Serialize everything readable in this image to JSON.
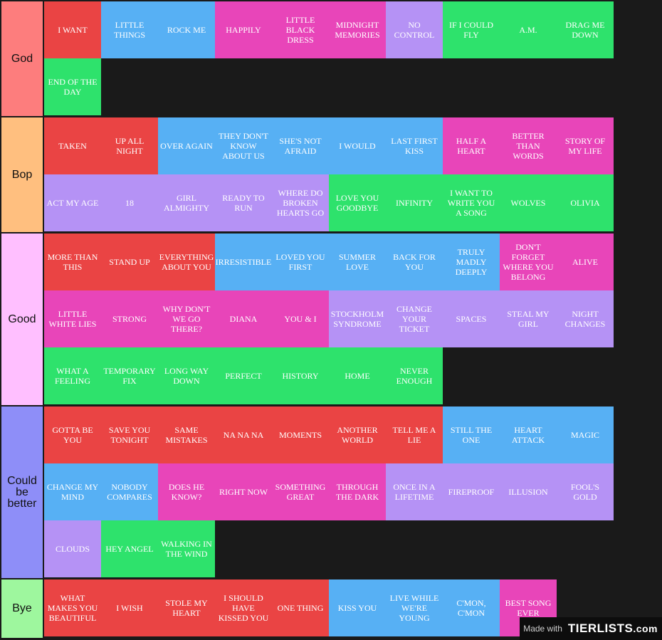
{
  "colors": {
    "red": "#ea4444",
    "blue": "#57b0f4",
    "pink": "#e845b9",
    "purple": "#b592f5",
    "green": "#2ee26c"
  },
  "tiers": [
    {
      "label": "God",
      "label_color": "#fd7d7d",
      "items": [
        {
          "text": "I WANT",
          "color": "red"
        },
        {
          "text": "LITTLE THINGS",
          "color": "blue"
        },
        {
          "text": "ROCK ME",
          "color": "blue"
        },
        {
          "text": "HAPPILY",
          "color": "pink"
        },
        {
          "text": "LITTLE BLACK DRESS",
          "color": "pink"
        },
        {
          "text": "MIDNIGHT MEMORIES",
          "color": "pink"
        },
        {
          "text": "NO CONTROL",
          "color": "purple"
        },
        {
          "text": "IF I COULD FLY",
          "color": "green"
        },
        {
          "text": "A.M.",
          "color": "green"
        },
        {
          "text": "DRAG ME DOWN",
          "color": "green"
        },
        {
          "text": "END OF THE DAY",
          "color": "green"
        }
      ]
    },
    {
      "label": "Bop",
      "label_color": "#ffbf7f",
      "items": [
        {
          "text": "TAKEN",
          "color": "red"
        },
        {
          "text": "UP ALL NIGHT",
          "color": "red"
        },
        {
          "text": "OVER AGAIN",
          "color": "blue"
        },
        {
          "text": "THEY DON'T KNOW ABOUT US",
          "color": "blue"
        },
        {
          "text": "SHE'S NOT AFRAID",
          "color": "blue"
        },
        {
          "text": "I WOULD",
          "color": "blue"
        },
        {
          "text": "LAST FIRST KISS",
          "color": "blue"
        },
        {
          "text": "HALF A HEART",
          "color": "pink"
        },
        {
          "text": "BETTER THAN WORDS",
          "color": "pink"
        },
        {
          "text": "STORY OF MY LIFE",
          "color": "pink"
        },
        {
          "text": "ACT MY AGE",
          "color": "purple"
        },
        {
          "text": "18",
          "color": "purple"
        },
        {
          "text": "GIRL ALMIGHTY",
          "color": "purple"
        },
        {
          "text": "READY TO RUN",
          "color": "purple"
        },
        {
          "text": "WHERE DO BROKEN HEARTS GO",
          "color": "purple"
        },
        {
          "text": "LOVE YOU GOODBYE",
          "color": "green"
        },
        {
          "text": "INFINITY",
          "color": "green"
        },
        {
          "text": "I WANT TO WRITE YOU A SONG",
          "color": "green"
        },
        {
          "text": "WOLVES",
          "color": "green"
        },
        {
          "text": "OLIVIA",
          "color": "green"
        }
      ]
    },
    {
      "label": "Good",
      "label_color": "#ffbfff",
      "items": [
        {
          "text": "MORE THAN THIS",
          "color": "red"
        },
        {
          "text": "STAND UP",
          "color": "red"
        },
        {
          "text": "EVERYTHING ABOUT YOU",
          "color": "red"
        },
        {
          "text": "IRRESISTIBLE",
          "color": "blue"
        },
        {
          "text": "LOVED YOU FIRST",
          "color": "blue"
        },
        {
          "text": "SUMMER LOVE",
          "color": "blue"
        },
        {
          "text": "BACK FOR YOU",
          "color": "blue"
        },
        {
          "text": "TRULY MADLY DEEPLY",
          "color": "blue"
        },
        {
          "text": "DON'T FORGET WHERE YOU BELONG",
          "color": "pink"
        },
        {
          "text": "ALIVE",
          "color": "pink"
        },
        {
          "text": "LITTLE WHITE LIES",
          "color": "pink"
        },
        {
          "text": "STRONG",
          "color": "pink"
        },
        {
          "text": "WHY DON'T WE GO THERE?",
          "color": "pink"
        },
        {
          "text": "DIANA",
          "color": "pink"
        },
        {
          "text": "YOU & I",
          "color": "pink"
        },
        {
          "text": "STOCKHOLM SYNDROME",
          "color": "purple"
        },
        {
          "text": "CHANGE YOUR TICKET",
          "color": "purple"
        },
        {
          "text": "SPACES",
          "color": "purple"
        },
        {
          "text": "STEAL MY GIRL",
          "color": "purple"
        },
        {
          "text": "NIGHT CHANGES",
          "color": "purple"
        },
        {
          "text": "WHAT A FEELING",
          "color": "green"
        },
        {
          "text": "TEMPORARY FIX",
          "color": "green"
        },
        {
          "text": "LONG WAY DOWN",
          "color": "green"
        },
        {
          "text": "PERFECT",
          "color": "green"
        },
        {
          "text": "HISTORY",
          "color": "green"
        },
        {
          "text": "HOME",
          "color": "green"
        },
        {
          "text": "NEVER ENOUGH",
          "color": "green"
        }
      ]
    },
    {
      "label": "Could be better",
      "label_color": "#8e8ef8",
      "items": [
        {
          "text": "GOTTA BE YOU",
          "color": "red"
        },
        {
          "text": "SAVE YOU TONIGHT",
          "color": "red"
        },
        {
          "text": "SAME MISTAKES",
          "color": "red"
        },
        {
          "text": "NA NA NA",
          "color": "red"
        },
        {
          "text": "MOMENTS",
          "color": "red"
        },
        {
          "text": "ANOTHER WORLD",
          "color": "red"
        },
        {
          "text": "TELL ME A LIE",
          "color": "red"
        },
        {
          "text": "STILL THE ONE",
          "color": "blue"
        },
        {
          "text": "HEART ATTACK",
          "color": "blue"
        },
        {
          "text": "MAGIC",
          "color": "blue"
        },
        {
          "text": "CHANGE MY MIND",
          "color": "blue"
        },
        {
          "text": "NOBODY COMPARES",
          "color": "blue"
        },
        {
          "text": "DOES HE KNOW?",
          "color": "pink"
        },
        {
          "text": "RIGHT NOW",
          "color": "pink"
        },
        {
          "text": "SOMETHING GREAT",
          "color": "pink"
        },
        {
          "text": "THROUGH THE DARK",
          "color": "pink"
        },
        {
          "text": "ONCE IN A LIFETIME",
          "color": "purple"
        },
        {
          "text": "FIREPROOF",
          "color": "purple"
        },
        {
          "text": "ILLUSION",
          "color": "purple"
        },
        {
          "text": "FOOL'S GOLD",
          "color": "purple"
        },
        {
          "text": "CLOUDS",
          "color": "purple"
        },
        {
          "text": "HEY ANGEL",
          "color": "green"
        },
        {
          "text": "WALKING IN THE WIND",
          "color": "green"
        }
      ]
    },
    {
      "label": "Bye",
      "label_color": "#9ef79e",
      "items": [
        {
          "text": "WHAT MAKES YOU BEAUTIFUL",
          "color": "red"
        },
        {
          "text": "I WISH",
          "color": "red"
        },
        {
          "text": "STOLE MY HEART",
          "color": "red"
        },
        {
          "text": "I SHOULD HAVE KISSED YOU",
          "color": "red"
        },
        {
          "text": "ONE THING",
          "color": "red"
        },
        {
          "text": "KISS YOU",
          "color": "blue"
        },
        {
          "text": "LIVE WHILE WE'RE YOUNG",
          "color": "blue"
        },
        {
          "text": "C'MON, C'MON",
          "color": "blue"
        },
        {
          "text": "BEST SONG EVER",
          "color": "pink"
        }
      ]
    }
  ],
  "watermark": {
    "made_with": "Made with",
    "brand": "TIERLISTS",
    "brand_suffix": ".com"
  }
}
